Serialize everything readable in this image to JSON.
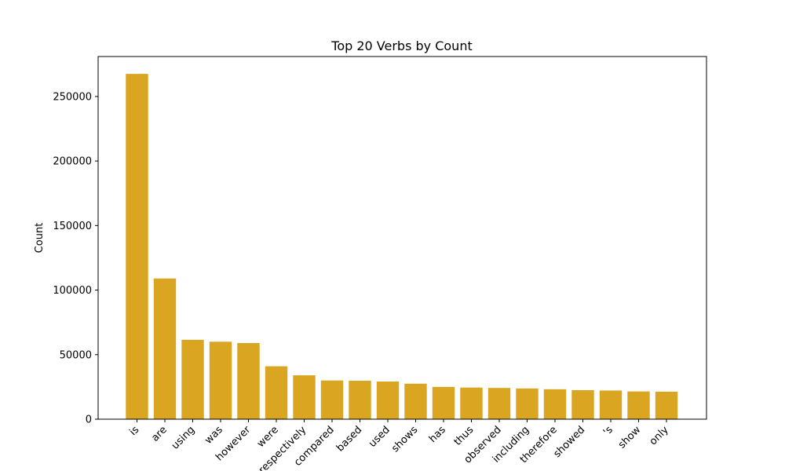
{
  "chart_data": {
    "type": "bar",
    "title": "Top 20 Verbs by Count",
    "xlabel": "",
    "ylabel": "Count",
    "categories": [
      "is",
      "are",
      "using",
      "was",
      "however",
      "were",
      "respectively",
      "compared",
      "based",
      "used",
      "shows",
      "has",
      "thus",
      "observed",
      "including",
      "therefore",
      "showed",
      "'s",
      "show",
      "only"
    ],
    "values": [
      267500,
      109000,
      61500,
      60000,
      59000,
      41000,
      34000,
      30000,
      29800,
      29200,
      27500,
      25000,
      24500,
      24200,
      23800,
      23200,
      22500,
      22200,
      21500,
      21300
    ],
    "ylim": [
      0,
      280950
    ],
    "yticks": [
      0,
      50000,
      100000,
      150000,
      200000,
      250000
    ],
    "grid": false,
    "bar_color": "#DAA520"
  }
}
